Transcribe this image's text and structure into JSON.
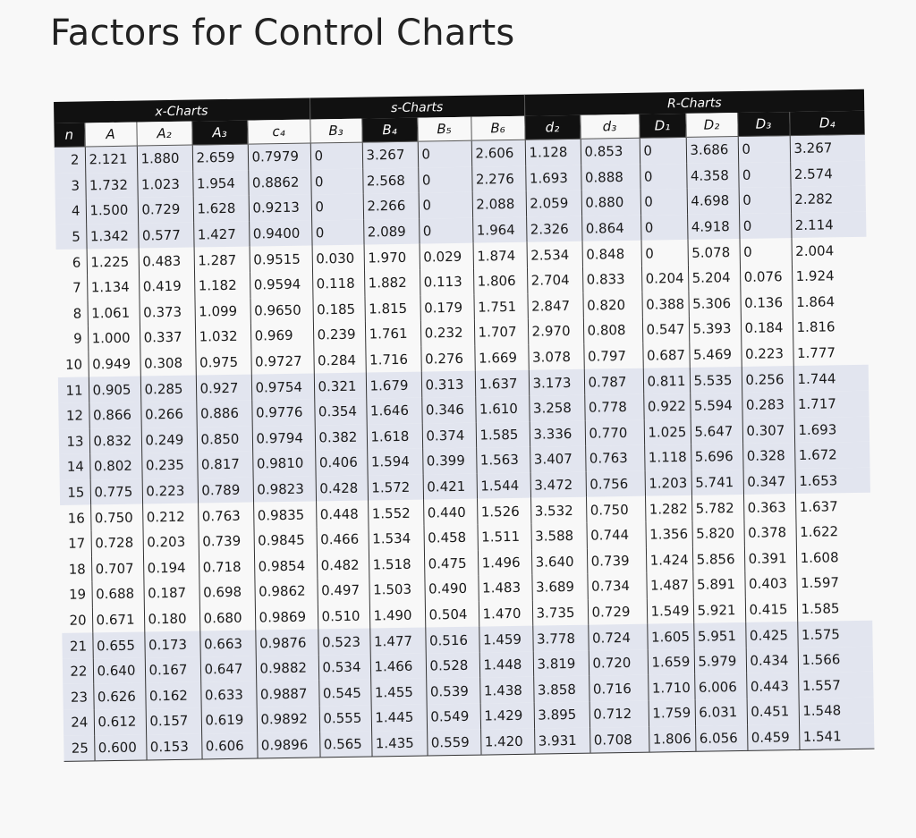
{
  "title": "Factors for Control Charts",
  "groups": {
    "x_charts": "x-Charts",
    "s_charts": "s-Charts",
    "r_charts": "R-Charts"
  },
  "columns": [
    "n",
    "A",
    "A₂",
    "A₃",
    "c₄",
    "B₃",
    "B₄",
    "B₅",
    "B₆",
    "d₂",
    "d₃",
    "D₁",
    "D₂",
    "D₃",
    "D₄"
  ],
  "rows": [
    [
      "2",
      "2.121",
      "1.880",
      "2.659",
      "0.7979",
      "0",
      "3.267",
      "0",
      "2.606",
      "1.128",
      "0.853",
      "0",
      "3.686",
      "0",
      "3.267"
    ],
    [
      "3",
      "1.732",
      "1.023",
      "1.954",
      "0.8862",
      "0",
      "2.568",
      "0",
      "2.276",
      "1.693",
      "0.888",
      "0",
      "4.358",
      "0",
      "2.574"
    ],
    [
      "4",
      "1.500",
      "0.729",
      "1.628",
      "0.9213",
      "0",
      "2.266",
      "0",
      "2.088",
      "2.059",
      "0.880",
      "0",
      "4.698",
      "0",
      "2.282"
    ],
    [
      "5",
      "1.342",
      "0.577",
      "1.427",
      "0.9400",
      "0",
      "2.089",
      "0",
      "1.964",
      "2.326",
      "0.864",
      "0",
      "4.918",
      "0",
      "2.114"
    ],
    [
      "6",
      "1.225",
      "0.483",
      "1.287",
      "0.9515",
      "0.030",
      "1.970",
      "0.029",
      "1.874",
      "2.534",
      "0.848",
      "0",
      "5.078",
      "0",
      "2.004"
    ],
    [
      "7",
      "1.134",
      "0.419",
      "1.182",
      "0.9594",
      "0.118",
      "1.882",
      "0.113",
      "1.806",
      "2.704",
      "0.833",
      "0.204",
      "5.204",
      "0.076",
      "1.924"
    ],
    [
      "8",
      "1.061",
      "0.373",
      "1.099",
      "0.9650",
      "0.185",
      "1.815",
      "0.179",
      "1.751",
      "2.847",
      "0.820",
      "0.388",
      "5.306",
      "0.136",
      "1.864"
    ],
    [
      "9",
      "1.000",
      "0.337",
      "1.032",
      "0.969",
      "0.239",
      "1.761",
      "0.232",
      "1.707",
      "2.970",
      "0.808",
      "0.547",
      "5.393",
      "0.184",
      "1.816"
    ],
    [
      "10",
      "0.949",
      "0.308",
      "0.975",
      "0.9727",
      "0.284",
      "1.716",
      "0.276",
      "1.669",
      "3.078",
      "0.797",
      "0.687",
      "5.469",
      "0.223",
      "1.777"
    ],
    [
      "11",
      "0.905",
      "0.285",
      "0.927",
      "0.9754",
      "0.321",
      "1.679",
      "0.313",
      "1.637",
      "3.173",
      "0.787",
      "0.811",
      "5.535",
      "0.256",
      "1.744"
    ],
    [
      "12",
      "0.866",
      "0.266",
      "0.886",
      "0.9776",
      "0.354",
      "1.646",
      "0.346",
      "1.610",
      "3.258",
      "0.778",
      "0.922",
      "5.594",
      "0.283",
      "1.717"
    ],
    [
      "13",
      "0.832",
      "0.249",
      "0.850",
      "0.9794",
      "0.382",
      "1.618",
      "0.374",
      "1.585",
      "3.336",
      "0.770",
      "1.025",
      "5.647",
      "0.307",
      "1.693"
    ],
    [
      "14",
      "0.802",
      "0.235",
      "0.817",
      "0.9810",
      "0.406",
      "1.594",
      "0.399",
      "1.563",
      "3.407",
      "0.763",
      "1.118",
      "5.696",
      "0.328",
      "1.672"
    ],
    [
      "15",
      "0.775",
      "0.223",
      "0.789",
      "0.9823",
      "0.428",
      "1.572",
      "0.421",
      "1.544",
      "3.472",
      "0.756",
      "1.203",
      "5.741",
      "0.347",
      "1.653"
    ],
    [
      "16",
      "0.750",
      "0.212",
      "0.763",
      "0.9835",
      "0.448",
      "1.552",
      "0.440",
      "1.526",
      "3.532",
      "0.750",
      "1.282",
      "5.782",
      "0.363",
      "1.637"
    ],
    [
      "17",
      "0.728",
      "0.203",
      "0.739",
      "0.9845",
      "0.466",
      "1.534",
      "0.458",
      "1.511",
      "3.588",
      "0.744",
      "1.356",
      "5.820",
      "0.378",
      "1.622"
    ],
    [
      "18",
      "0.707",
      "0.194",
      "0.718",
      "0.9854",
      "0.482",
      "1.518",
      "0.475",
      "1.496",
      "3.640",
      "0.739",
      "1.424",
      "5.856",
      "0.391",
      "1.608"
    ],
    [
      "19",
      "0.688",
      "0.187",
      "0.698",
      "0.9862",
      "0.497",
      "1.503",
      "0.490",
      "1.483",
      "3.689",
      "0.734",
      "1.487",
      "5.891",
      "0.403",
      "1.597"
    ],
    [
      "20",
      "0.671",
      "0.180",
      "0.680",
      "0.9869",
      "0.510",
      "1.490",
      "0.504",
      "1.470",
      "3.735",
      "0.729",
      "1.549",
      "5.921",
      "0.415",
      "1.585"
    ],
    [
      "21",
      "0.655",
      "0.173",
      "0.663",
      "0.9876",
      "0.523",
      "1.477",
      "0.516",
      "1.459",
      "3.778",
      "0.724",
      "1.605",
      "5.951",
      "0.425",
      "1.575"
    ],
    [
      "22",
      "0.640",
      "0.167",
      "0.647",
      "0.9882",
      "0.534",
      "1.466",
      "0.528",
      "1.448",
      "3.819",
      "0.720",
      "1.659",
      "5.979",
      "0.434",
      "1.566"
    ],
    [
      "23",
      "0.626",
      "0.162",
      "0.633",
      "0.9887",
      "0.545",
      "1.455",
      "0.539",
      "1.438",
      "3.858",
      "0.716",
      "1.710",
      "6.006",
      "0.443",
      "1.557"
    ],
    [
      "24",
      "0.612",
      "0.157",
      "0.619",
      "0.9892",
      "0.555",
      "1.445",
      "0.549",
      "1.429",
      "3.895",
      "0.712",
      "1.759",
      "6.031",
      "0.451",
      "1.548"
    ],
    [
      "25",
      "0.600",
      "0.153",
      "0.606",
      "0.9896",
      "0.565",
      "1.435",
      "0.559",
      "1.420",
      "3.931",
      "0.708",
      "1.806",
      "6.056",
      "0.459",
      "1.541"
    ]
  ],
  "shaded_row_blocks": [
    [
      2,
      5
    ],
    [
      11,
      15
    ],
    [
      21,
      25
    ]
  ],
  "colors": {
    "header_bg": "#111111",
    "shade_bg": "#e2e5ef",
    "paper_bg": "#f8f8f8"
  }
}
